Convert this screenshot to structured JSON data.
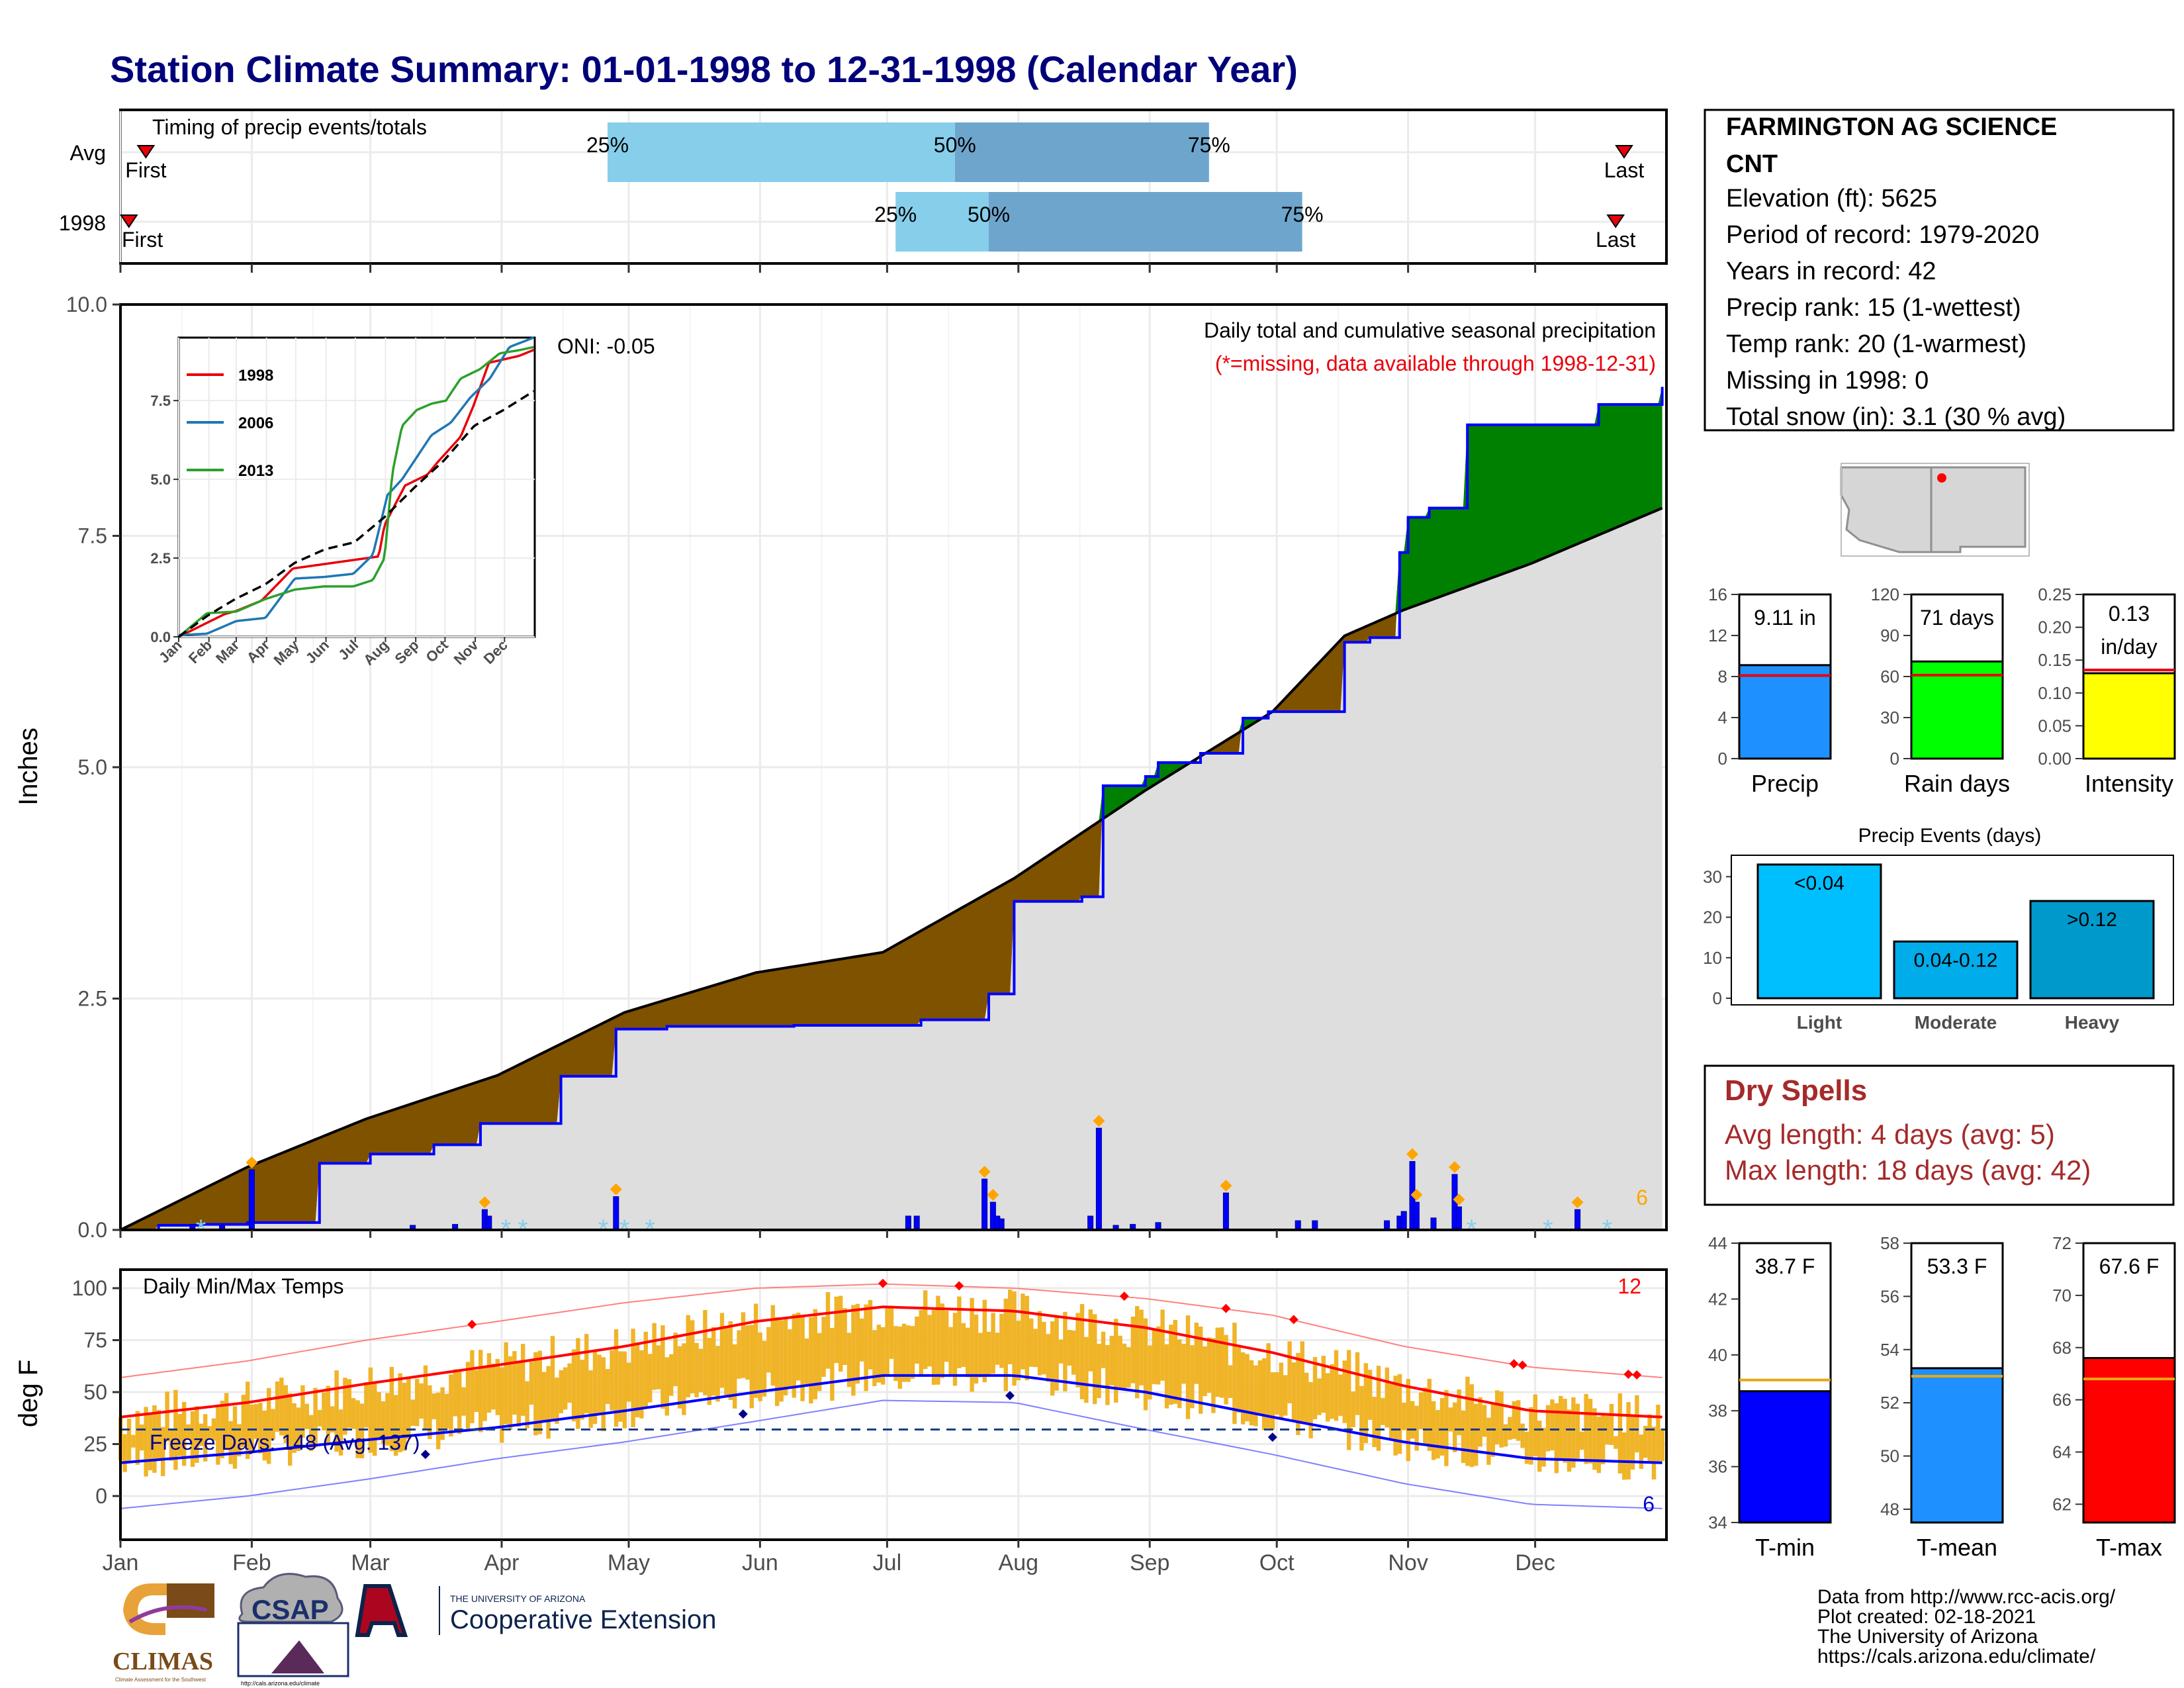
{
  "title": "Station Climate Summary: 01-01-1998 to 12-31-1998 (Calendar Year)",
  "colors": {
    "title": "#00007a",
    "brown": "#7f5200",
    "green": "#008000",
    "gray_fill": "#dedede",
    "precip_bar": "#1e90ff",
    "rain_days_bar": "#00ff00",
    "intensity_bar": "#ffff00",
    "light": "#00bfff",
    "moderate": "#00acea",
    "heavy": "#0099cc",
    "tmin": "#0000ff",
    "tmean": "#1e90ff",
    "tmax": "#ff0000",
    "temp_bars": "#f0b428",
    "timing_light": "#87ceeb",
    "timing_dark": "#6ea5cd",
    "dry_spells": "#a52a2a"
  },
  "timing": {
    "title": "Timing of precip events/totals",
    "rows": [
      {
        "label": "Avg",
        "first_label": "First",
        "last_label": "Last",
        "first_doy": 7,
        "p25_doy": 116,
        "p50_doy": 198,
        "p75_doy": 258,
        "last_doy": 356
      },
      {
        "label": "1998",
        "first_label": "First",
        "last_label": "Last",
        "first_doy": 3,
        "p25_doy": 184,
        "p50_doy": 206,
        "p75_doy": 280,
        "last_doy": 354
      }
    ],
    "p25_label": "25%",
    "p50_label": "50%",
    "p75_label": "75%"
  },
  "station": {
    "name": "FARMINGTON AG SCIENCE",
    "name2": "CNT",
    "lines": [
      "Elevation (ft): 5625",
      "Period of record: 1979-2020",
      "Years in record: 42",
      "Precip rank: 15 (1-wettest)",
      "Temp rank: 20 (1-warmest)",
      "Missing in 1998: 0",
      "Total snow (in): 3.1 (30 % avg)"
    ]
  },
  "precip_panel": {
    "ylabel": "Inches",
    "yticks": [
      "0.0",
      "2.5",
      "5.0",
      "7.5",
      "10.0"
    ],
    "ylim": [
      0,
      10
    ],
    "oni": "ONI: -0.05",
    "note1": "Daily total and cumulative seasonal precipitation",
    "note2": "(*=missing, data available through 1998-12-31)",
    "corner_count": "6"
  },
  "inset": {
    "yticks": [
      "0.0",
      "2.5",
      "5.0",
      "7.5"
    ],
    "months": [
      "Jan",
      "Feb",
      "Mar",
      "Apr",
      "May",
      "Jun",
      "Jul",
      "Aug",
      "Sep",
      "Oct",
      "Nov",
      "Dec"
    ],
    "legend": [
      "1998",
      "2006",
      "2013"
    ]
  },
  "months": [
    "Jan",
    "Feb",
    "Mar",
    "Apr",
    "May",
    "Jun",
    "Jul",
    "Aug",
    "Sep",
    "Oct",
    "Nov",
    "Dec"
  ],
  "temp_panel": {
    "title": "Daily Min/Max Temps",
    "ylabel": "deg F",
    "yticks": [
      "0",
      "25",
      "50",
      "75",
      "100"
    ],
    "freeze": "Freeze Days: 148 (Avg: 137)",
    "count_red": "12",
    "count_blue": "6"
  },
  "chart_data": [
    {
      "type": "area",
      "title": "Daily total and cumulative seasonal precipitation",
      "ylabel": "Inches",
      "ylim": [
        0,
        10
      ],
      "x_units": "day of year 1998",
      "series": [
        {
          "name": "1998 cumulative",
          "x": [
            1,
            10,
            20,
            31,
            48,
            60,
            75,
            86,
            105,
            118,
            130,
            160,
            190,
            206,
            212,
            228,
            233,
            243,
            246,
            256,
            266,
            272,
            290,
            296,
            303,
            305,
            310,
            319,
            350,
            365
          ],
          "y": [
            0.0,
            0.05,
            0.06,
            0.08,
            0.72,
            0.82,
            0.92,
            1.15,
            1.66,
            2.17,
            2.2,
            2.21,
            2.27,
            2.55,
            3.55,
            3.6,
            4.8,
            4.9,
            5.05,
            5.15,
            5.53,
            5.6,
            6.35,
            6.4,
            7.32,
            7.7,
            7.8,
            8.7,
            8.92,
            9.11
          ]
        },
        {
          "name": "Average cumulative",
          "x": [
            1,
            31,
            59,
            90,
            120,
            151,
            181,
            212,
            243,
            273,
            290,
            304,
            334,
            365
          ],
          "y": [
            0.0,
            0.68,
            1.2,
            1.67,
            2.35,
            2.78,
            3.0,
            3.8,
            4.75,
            5.6,
            6.42,
            6.7,
            7.2,
            7.8
          ]
        }
      ],
      "daily_bars": [
        {
          "x": 32,
          "y": 0.65
        },
        {
          "x": 18,
          "y": 0.06
        },
        {
          "x": 25,
          "y": 0.05
        },
        {
          "x": 70,
          "y": 0.05
        },
        {
          "x": 80,
          "y": 0.06
        },
        {
          "x": 87,
          "y": 0.22
        },
        {
          "x": 88,
          "y": 0.15
        },
        {
          "x": 118,
          "y": 0.36
        },
        {
          "x": 187,
          "y": 0.15
        },
        {
          "x": 189,
          "y": 0.15
        },
        {
          "x": 205,
          "y": 0.55
        },
        {
          "x": 207,
          "y": 0.3
        },
        {
          "x": 208,
          "y": 0.15
        },
        {
          "x": 209,
          "y": 0.12
        },
        {
          "x": 230,
          "y": 0.15
        },
        {
          "x": 232,
          "y": 1.1
        },
        {
          "x": 236,
          "y": 0.05
        },
        {
          "x": 240,
          "y": 0.06
        },
        {
          "x": 246,
          "y": 0.08
        },
        {
          "x": 262,
          "y": 0.4
        },
        {
          "x": 279,
          "y": 0.1
        },
        {
          "x": 283,
          "y": 0.1
        },
        {
          "x": 300,
          "y": 0.1
        },
        {
          "x": 303,
          "y": 0.15
        },
        {
          "x": 304,
          "y": 0.2
        },
        {
          "x": 306,
          "y": 0.74
        },
        {
          "x": 307,
          "y": 0.3
        },
        {
          "x": 311,
          "y": 0.13
        },
        {
          "x": 316,
          "y": 0.6
        },
        {
          "x": 317,
          "y": 0.25
        },
        {
          "x": 345,
          "y": 0.22
        }
      ]
    },
    {
      "type": "line",
      "title": "Inset cumulative precipitation",
      "series": [
        {
          "name": "1998",
          "x": [
            1,
            48,
            60,
            86,
            118,
            206,
            212,
            233,
            256,
            266,
            290,
            303,
            319,
            350,
            365
          ],
          "y": [
            0.0,
            0.72,
            0.82,
            1.15,
            2.17,
            2.55,
            3.55,
            4.8,
            5.15,
            5.53,
            6.35,
            7.32,
            8.7,
            8.92,
            9.11
          ]
        },
        {
          "name": "2006",
          "x": [
            1,
            30,
            60,
            90,
            120,
            150,
            180,
            200,
            215,
            230,
            245,
            260,
            280,
            300,
            320,
            340,
            365
          ],
          "y": [
            0.05,
            0.1,
            0.5,
            0.6,
            1.85,
            1.9,
            2.0,
            2.6,
            4.5,
            5.0,
            5.7,
            6.4,
            6.8,
            7.6,
            8.2,
            9.2,
            9.5
          ]
        },
        {
          "name": "2013",
          "x": [
            1,
            30,
            60,
            90,
            120,
            150,
            180,
            200,
            212,
            220,
            230,
            245,
            260,
            275,
            290,
            310,
            330,
            350,
            365
          ],
          "y": [
            0.0,
            0.75,
            0.8,
            1.2,
            1.5,
            1.6,
            1.6,
            1.8,
            2.5,
            5.2,
            6.7,
            7.2,
            7.4,
            7.5,
            8.2,
            8.5,
            9.0,
            9.1,
            9.2
          ]
        },
        {
          "name": "Average",
          "x": [
            1,
            31,
            59,
            90,
            120,
            151,
            181,
            212,
            243,
            273,
            304,
            334,
            365
          ],
          "y": [
            0.0,
            0.68,
            1.2,
            1.67,
            2.35,
            2.78,
            3.0,
            3.8,
            4.75,
            5.6,
            6.7,
            7.2,
            7.8
          ]
        }
      ]
    },
    {
      "type": "bar",
      "title": "Precip",
      "categories": [
        "Precip"
      ],
      "values": [
        9.11
      ],
      "average": 8.1,
      "ylim": [
        0,
        16
      ],
      "yticks": [
        "0",
        "4",
        "8",
        "12",
        "16"
      ],
      "value_label": "9.11 in"
    },
    {
      "type": "bar",
      "title": "Rain days",
      "categories": [
        "Rain days"
      ],
      "values": [
        71
      ],
      "average": 61,
      "ylim": [
        0,
        120
      ],
      "yticks": [
        "0",
        "30",
        "60",
        "90",
        "120"
      ],
      "value_label": "71 days"
    },
    {
      "type": "bar",
      "title": "Intensity",
      "categories": [
        "Intensity"
      ],
      "values": [
        0.13
      ],
      "average": 0.135,
      "ylim": [
        0,
        0.25
      ],
      "yticks": [
        "0.00",
        "0.05",
        "0.10",
        "0.15",
        "0.20",
        "0.25"
      ],
      "value_label_1": "0.13",
      "value_label_2": "in/day"
    },
    {
      "type": "bar",
      "title": "Precip Events (days)",
      "categories": [
        "Light",
        "Moderate",
        "Heavy"
      ],
      "bar_labels": [
        "<0.04",
        "0.04-0.12",
        ">0.12"
      ],
      "values": [
        33,
        14,
        24
      ],
      "ylim": [
        0,
        33
      ],
      "yticks": [
        "0",
        "10",
        "20",
        "30"
      ]
    },
    {
      "type": "bar",
      "title": "T-min",
      "categories": [
        "T-min"
      ],
      "values": [
        38.7
      ],
      "average": 39.1,
      "ylim": [
        34,
        44
      ],
      "yticks": [
        "34",
        "36",
        "38",
        "40",
        "42",
        "44"
      ],
      "value_label": "38.7 F"
    },
    {
      "type": "bar",
      "title": "T-mean",
      "categories": [
        "T-mean"
      ],
      "values": [
        53.3
      ],
      "average": 53.0,
      "ylim": [
        47.5,
        58
      ],
      "yticks": [
        "48",
        "50",
        "52",
        "54",
        "56",
        "58"
      ],
      "value_label": "53.3 F"
    },
    {
      "type": "bar",
      "title": "T-max",
      "categories": [
        "T-max"
      ],
      "values": [
        67.6
      ],
      "average": 66.8,
      "ylim": [
        61.3,
        72
      ],
      "yticks": [
        "62",
        "64",
        "66",
        "68",
        "70",
        "72"
      ],
      "value_label": "67.6 F"
    },
    {
      "type": "line",
      "title": "Daily Min/Max Temps",
      "ylabel": "deg F",
      "ylim": [
        -20,
        110
      ],
      "series": [
        {
          "name": "Avg max",
          "x": [
            1,
            31,
            59,
            90,
            120,
            151,
            181,
            212,
            243,
            273,
            304,
            334,
            365
          ],
          "y": [
            38,
            45,
            54,
            63,
            72,
            84,
            91,
            89,
            81,
            69,
            53,
            41,
            38
          ]
        },
        {
          "name": "Avg min",
          "x": [
            1,
            31,
            59,
            90,
            120,
            151,
            181,
            212,
            243,
            273,
            304,
            334,
            365
          ],
          "y": [
            16,
            21,
            27,
            33,
            41,
            50,
            58,
            58,
            50,
            38,
            26,
            18,
            16
          ]
        },
        {
          "name": "Record high",
          "x": [
            1,
            31,
            59,
            90,
            120,
            151,
            181,
            212,
            243,
            273,
            304,
            334,
            365
          ],
          "y": [
            57,
            65,
            75,
            84,
            93,
            100,
            102,
            100,
            95,
            87,
            72,
            62,
            57
          ]
        },
        {
          "name": "Record low",
          "x": [
            1,
            31,
            59,
            90,
            120,
            151,
            181,
            212,
            243,
            273,
            304,
            334,
            365
          ],
          "y": [
            -6,
            0,
            8,
            18,
            26,
            36,
            46,
            45,
            32,
            20,
            6,
            -4,
            -6
          ]
        }
      ],
      "freeze_line": 32
    }
  ],
  "dry_spells": {
    "title": "Dry Spells",
    "line1": "Avg length: 4 days (avg: 5)",
    "line2": "Max length: 18 days (avg: 42)"
  },
  "footer": {
    "lines": [
      "Data from http://www.rcc-acis.org/",
      "Plot created: 02-18-2021",
      "The University of Arizona",
      "https://cals.arizona.edu/climate/"
    ],
    "climas": "CLIMAS",
    "climas_sub": "Climate Assessment for the Southwest",
    "csap": "CSAP",
    "csap_url": "http://cals.arizona.edu/climate",
    "ua_small": "THE UNIVERSITY OF ARIZONA",
    "ua_big": "Cooperative Extension"
  }
}
